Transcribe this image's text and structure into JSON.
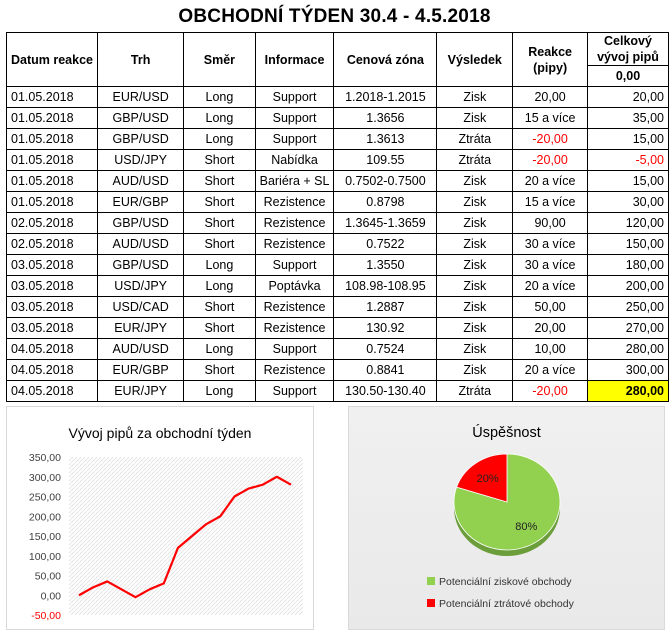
{
  "title": "OBCHODNÍ TÝDEN 30.4 - 4.5.2018",
  "table": {
    "headers": {
      "date": "Datum reakce",
      "market": "Trh",
      "direction": "Směr",
      "info": "Informace",
      "price": "Cenová zóna",
      "result": "Výsledek",
      "reaction": "Reakce (pipy)",
      "cumulative": "Celkový vývoj pipů"
    },
    "initial_cumulative": "0,00",
    "rows": [
      {
        "date": "01.05.2018",
        "market": "EUR/USD",
        "direction": "Long",
        "info": "Support",
        "price": "1.2018-1.2015",
        "result": "Zisk",
        "reaction": "20,00",
        "cumulative": "20,00"
      },
      {
        "date": "01.05.2018",
        "market": "GBP/USD",
        "direction": "Long",
        "info": "Support",
        "price": "1.3656",
        "result": "Zisk",
        "reaction": "15 a více",
        "cumulative": "35,00"
      },
      {
        "date": "01.05.2018",
        "market": "GBP/USD",
        "direction": "Long",
        "info": "Support",
        "price": "1.3613",
        "result": "Ztráta",
        "reaction": "-20,00",
        "cumulative": "15,00"
      },
      {
        "date": "01.05.2018",
        "market": "USD/JPY",
        "direction": "Short",
        "info": "Nabídka",
        "price": "109.55",
        "result": "Ztráta",
        "reaction": "-20,00",
        "cumulative": "-5,00"
      },
      {
        "date": "01.05.2018",
        "market": "AUD/USD",
        "direction": "Short",
        "info": "Bariéra + SL",
        "price": "0.7502-0.7500",
        "result": "Zisk",
        "reaction": "20 a více",
        "cumulative": "15,00"
      },
      {
        "date": "01.05.2018",
        "market": "EUR/GBP",
        "direction": "Short",
        "info": "Rezistence",
        "price": "0.8798",
        "result": "Zisk",
        "reaction": "15 a více",
        "cumulative": "30,00"
      },
      {
        "date": "02.05.2018",
        "market": "GBP/USD",
        "direction": "Short",
        "info": "Rezistence",
        "price": "1.3645-1.3659",
        "result": "Zisk",
        "reaction": "90,00",
        "cumulative": "120,00"
      },
      {
        "date": "02.05.2018",
        "market": "AUD/USD",
        "direction": "Short",
        "info": "Rezistence",
        "price": "0.7522",
        "result": "Zisk",
        "reaction": "30 a více",
        "cumulative": "150,00"
      },
      {
        "date": "03.05.2018",
        "market": "GBP/USD",
        "direction": "Long",
        "info": "Support",
        "price": "1.3550",
        "result": "Zisk",
        "reaction": "30 a více",
        "cumulative": "180,00"
      },
      {
        "date": "03.05.2018",
        "market": "USD/JPY",
        "direction": "Long",
        "info": "Poptávka",
        "price": "108.98-108.95",
        "result": "Zisk",
        "reaction": "20 a více",
        "cumulative": "200,00"
      },
      {
        "date": "03.05.2018",
        "market": "USD/CAD",
        "direction": "Short",
        "info": "Rezistence",
        "price": "1.2887",
        "result": "Zisk",
        "reaction": "50,00",
        "cumulative": "250,00"
      },
      {
        "date": "03.05.2018",
        "market": "EUR/JPY",
        "direction": "Short",
        "info": "Rezistence",
        "price": "130.92",
        "result": "Zisk",
        "reaction": "20,00",
        "cumulative": "270,00"
      },
      {
        "date": "04.05.2018",
        "market": "AUD/USD",
        "direction": "Long",
        "info": "Support",
        "price": "0.7524",
        "result": "Zisk",
        "reaction": "10,00",
        "cumulative": "280,00"
      },
      {
        "date": "04.05.2018",
        "market": "EUR/GBP",
        "direction": "Short",
        "info": "Rezistence",
        "price": "0.8841",
        "result": "Zisk",
        "reaction": "20 a více",
        "cumulative": "300,00"
      },
      {
        "date": "04.05.2018",
        "market": "EUR/JPY",
        "direction": "Long",
        "info": "Support",
        "price": "130.50-130.40",
        "result": "Ztráta",
        "reaction": "-20,00",
        "cumulative": "280,00"
      }
    ]
  },
  "colors": {
    "negative": "#ff0000",
    "highlight": "#ffff00",
    "line": "#ff0000",
    "pie_win": "#92d050",
    "pie_loss": "#ff0000"
  },
  "chart_data": [
    {
      "type": "line",
      "title": "Vývoj pipů za obchodní týden",
      "xlabel": "",
      "ylabel": "",
      "ylim": [
        -50,
        350
      ],
      "ytick_step": 50,
      "ytick_labels": [
        "-50,00",
        "0,00",
        "50,00",
        "100,00",
        "150,00",
        "200,00",
        "250,00",
        "300,00",
        "350,00"
      ],
      "grid": true,
      "series": [
        {
          "values": [
            0,
            20,
            35,
            15,
            -5,
            15,
            30,
            120,
            150,
            180,
            200,
            250,
            270,
            280,
            300,
            280
          ]
        }
      ]
    },
    {
      "type": "pie",
      "title": "Úspěšnost",
      "slices": [
        {
          "label": "Potenciální ziskové obchody",
          "value": 80,
          "display": "80%",
          "color": "#92d050"
        },
        {
          "label": "Potenciální ztrátové obchody",
          "value": 20,
          "display": "20%",
          "color": "#ff0000"
        }
      ],
      "legend_position": "bottom"
    }
  ]
}
